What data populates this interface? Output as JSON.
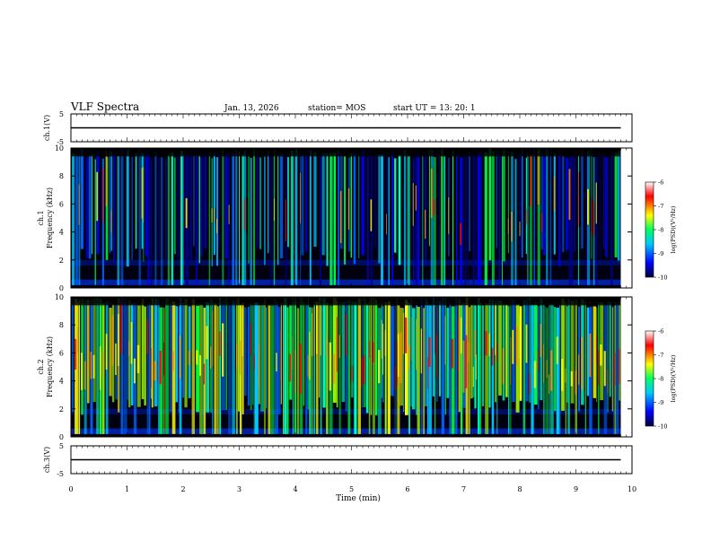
{
  "header": {
    "title": "VLF Spectra",
    "date": "Jan. 13, 2026",
    "station": "station= MOS",
    "start": "start  UT  =   13: 20: 1"
  },
  "chart_data": [
    {
      "type": "line",
      "name": "ch1-waveform",
      "ylabel": "ch.1(V)",
      "ylim": [
        -5,
        5
      ],
      "yticks": [
        5,
        -5
      ],
      "xlim": [
        0,
        10
      ],
      "series": [
        {
          "name": "ch.1",
          "x": [
            0,
            9.8
          ],
          "values": [
            0,
            0
          ]
        }
      ]
    },
    {
      "type": "heatmap",
      "name": "ch1-spectrogram",
      "ylabel": "ch.1\nFrequency (kHz)",
      "ylim": [
        0,
        10
      ],
      "yticks": [
        0,
        2,
        4,
        6,
        8,
        10
      ],
      "xlim": [
        0,
        9.8
      ],
      "colorbar": {
        "label": "log(PSD)(V²/Hz)",
        "range": [
          -10,
          -6
        ],
        "ticks": [
          -6,
          -7,
          -8,
          -9,
          -10
        ]
      }
    },
    {
      "type": "heatmap",
      "name": "ch2-spectrogram",
      "ylabel": "ch.2\nFrequency (kHz)",
      "ylim": [
        0,
        10
      ],
      "yticks": [
        0,
        2,
        4,
        6,
        8,
        10
      ],
      "xlim": [
        0,
        9.8
      ],
      "colorbar": {
        "label": "log(PSD)(V²/Hz)",
        "range": [
          -10,
          -6
        ],
        "ticks": [
          -6,
          -7,
          -8,
          -9,
          -10
        ]
      }
    },
    {
      "type": "line",
      "name": "ch3-waveform",
      "ylabel": "ch.3(V)",
      "ylim": [
        -5,
        5
      ],
      "yticks": [
        5,
        -5
      ],
      "xlim": [
        0,
        10
      ],
      "series": [
        {
          "name": "ch.3",
          "x": [
            0,
            9.8
          ],
          "values": [
            0,
            0
          ]
        }
      ]
    }
  ],
  "xaxis": {
    "label": "Time (min)",
    "range": [
      0,
      10
    ],
    "ticks": [
      0,
      1,
      2,
      3,
      4,
      5,
      6,
      7,
      8,
      9,
      10
    ]
  },
  "colors": {
    "colormap": [
      "#000080",
      "#0000ff",
      "#00c8ff",
      "#00ff80",
      "#ffff00",
      "#ff0000",
      "#ffffff"
    ]
  }
}
